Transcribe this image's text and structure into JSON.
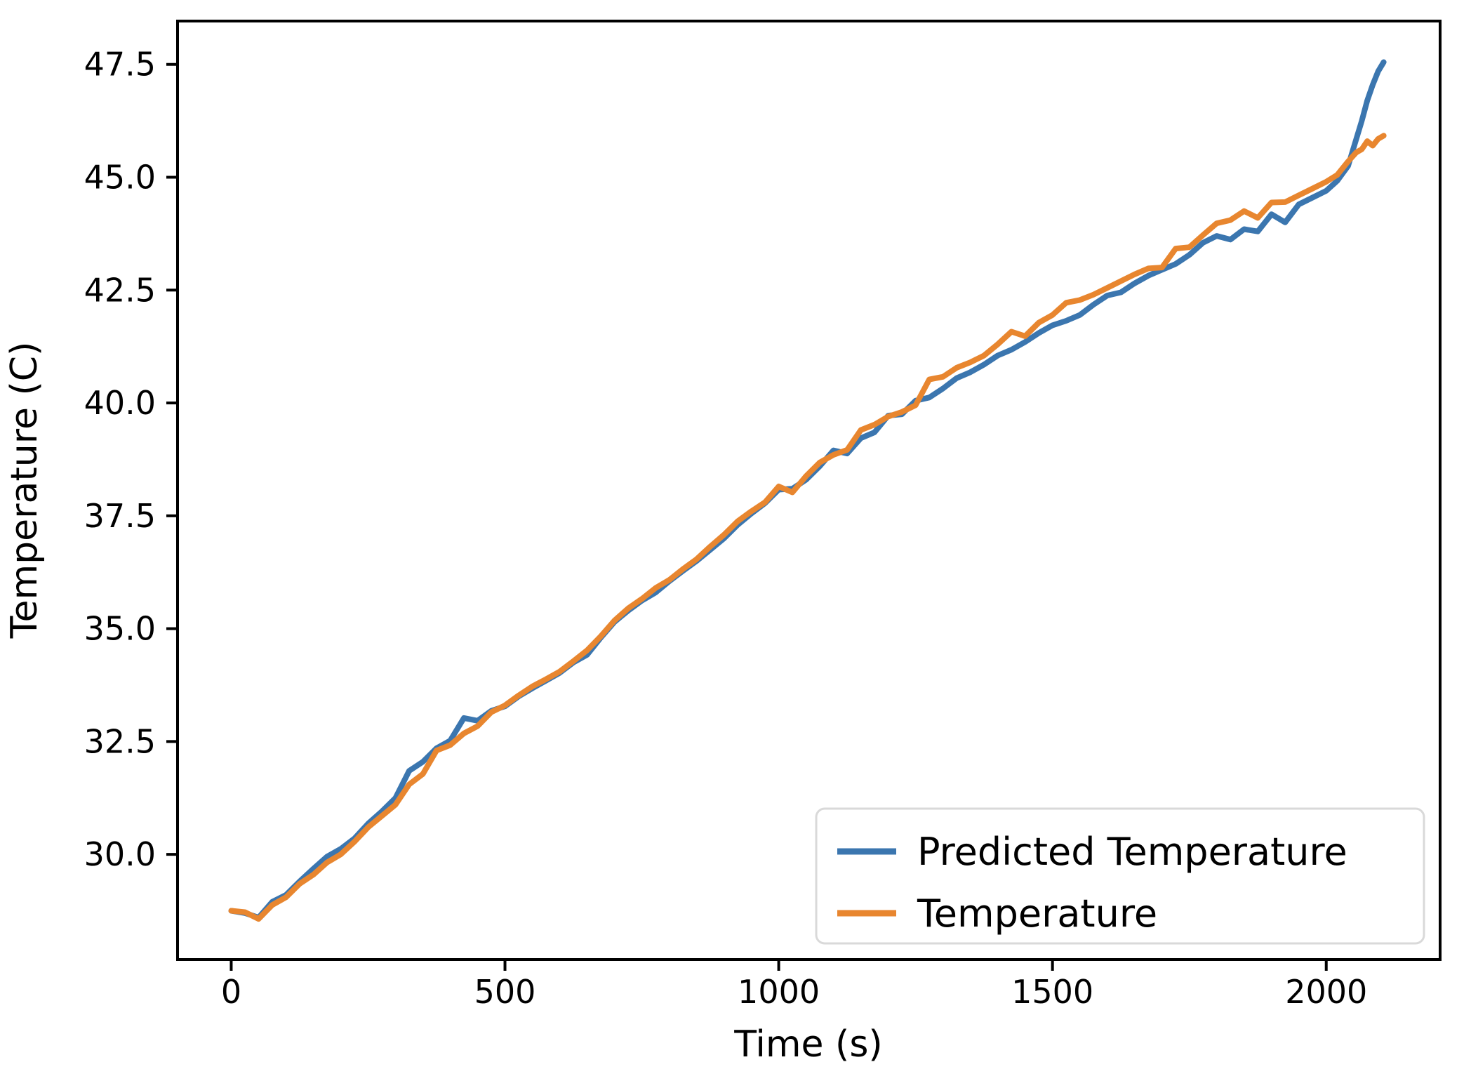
{
  "chart_data": {
    "type": "line",
    "title": "",
    "xlabel": "Time (s)",
    "ylabel": "Temperature (C)",
    "xlim": [
      -98,
      2208
    ],
    "ylim": [
      27.67,
      48.46
    ],
    "x_ticks": [
      0,
      500,
      1000,
      1500,
      2000
    ],
    "y_ticks": [
      30.0,
      32.5,
      35.0,
      37.5,
      40.0,
      42.5,
      45.0,
      47.5
    ],
    "grid": false,
    "axis_color": "#000000",
    "background_color": "#ffffff",
    "legend": {
      "position": "lower right",
      "border_color": "#d9d9d9",
      "entries": [
        {
          "label": "Predicted Temperature",
          "color": "#3b76af"
        },
        {
          "label": "Temperature",
          "color": "#e8862f"
        }
      ]
    },
    "x": [
      0,
      25,
      50,
      75,
      100,
      125,
      150,
      175,
      200,
      225,
      250,
      275,
      300,
      325,
      350,
      375,
      400,
      425,
      450,
      475,
      500,
      525,
      550,
      575,
      600,
      625,
      650,
      675,
      700,
      725,
      750,
      775,
      800,
      825,
      850,
      875,
      900,
      925,
      950,
      975,
      1000,
      1025,
      1050,
      1075,
      1100,
      1125,
      1150,
      1175,
      1200,
      1225,
      1250,
      1275,
      1300,
      1325,
      1350,
      1375,
      1400,
      1425,
      1450,
      1475,
      1500,
      1525,
      1550,
      1575,
      1600,
      1625,
      1650,
      1675,
      1700,
      1725,
      1750,
      1775,
      1800,
      1825,
      1850,
      1875,
      1900,
      1925,
      1950,
      1975,
      2000,
      2020,
      2040,
      2055,
      2065,
      2075,
      2085,
      2095,
      2105
    ],
    "series": [
      {
        "name": "Predicted Temperature",
        "color": "#3b76af",
        "values": [
          28.75,
          28.7,
          28.6,
          28.95,
          29.1,
          29.4,
          29.68,
          29.95,
          30.12,
          30.35,
          30.68,
          30.95,
          31.25,
          31.85,
          32.05,
          32.35,
          32.52,
          33.02,
          32.96,
          33.18,
          33.28,
          33.5,
          33.68,
          33.85,
          34.02,
          34.25,
          34.42,
          34.8,
          35.15,
          35.4,
          35.62,
          35.8,
          36.05,
          36.28,
          36.5,
          36.75,
          37.0,
          37.3,
          37.55,
          37.78,
          38.08,
          38.1,
          38.3,
          38.6,
          38.95,
          38.88,
          39.22,
          39.35,
          39.72,
          39.75,
          40.05,
          40.12,
          40.32,
          40.55,
          40.68,
          40.85,
          41.05,
          41.18,
          41.35,
          41.55,
          41.72,
          41.82,
          41.95,
          42.18,
          42.38,
          42.45,
          42.65,
          42.82,
          42.95,
          43.08,
          43.28,
          43.55,
          43.7,
          43.62,
          43.85,
          43.8,
          44.18,
          44.0,
          44.4,
          44.55,
          44.7,
          44.92,
          45.25,
          45.85,
          46.25,
          46.7,
          47.05,
          47.35,
          47.55
        ]
      },
      {
        "name": "Temperature",
        "color": "#e8862f",
        "values": [
          28.75,
          28.72,
          28.57,
          28.88,
          29.05,
          29.35,
          29.55,
          29.82,
          30.0,
          30.28,
          30.6,
          30.85,
          31.1,
          31.55,
          31.78,
          32.3,
          32.42,
          32.68,
          32.84,
          33.15,
          33.3,
          33.52,
          33.72,
          33.88,
          34.05,
          34.28,
          34.52,
          34.83,
          35.18,
          35.45,
          35.66,
          35.9,
          36.08,
          36.32,
          36.54,
          36.82,
          37.08,
          37.38,
          37.6,
          37.8,
          38.15,
          38.02,
          38.38,
          38.68,
          38.85,
          38.96,
          39.4,
          39.52,
          39.7,
          39.8,
          39.95,
          40.52,
          40.58,
          40.78,
          40.9,
          41.05,
          41.3,
          41.58,
          41.48,
          41.78,
          41.95,
          42.22,
          42.28,
          42.4,
          42.55,
          42.7,
          42.85,
          42.98,
          43.0,
          43.42,
          43.45,
          43.72,
          43.98,
          44.05,
          44.25,
          44.1,
          44.44,
          44.45,
          44.6,
          44.75,
          44.9,
          45.05,
          45.35,
          45.55,
          45.62,
          45.8,
          45.7,
          45.85,
          45.92
        ]
      }
    ]
  }
}
